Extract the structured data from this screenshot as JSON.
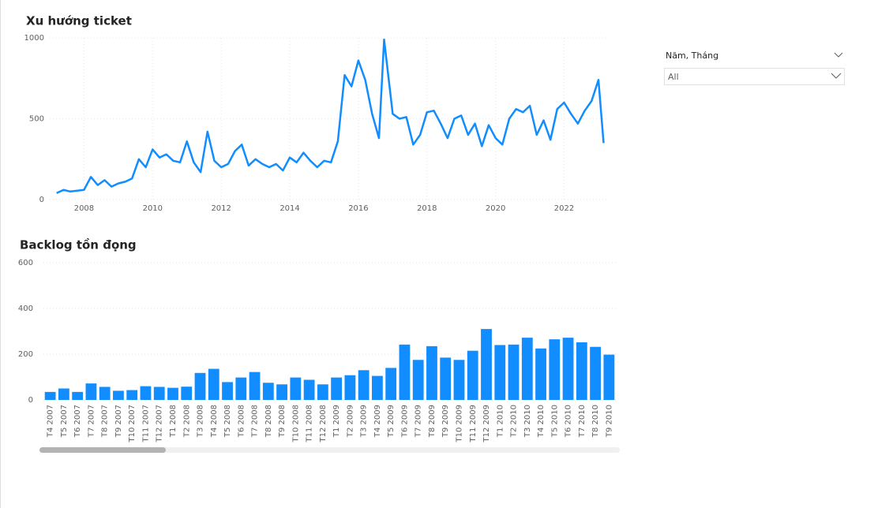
{
  "chart_data": [
    {
      "type": "line",
      "title": "Xu hướng ticket",
      "color": "#118DFF",
      "grid": true,
      "x": [
        2007.2,
        2007.4,
        2007.6,
        2007.8,
        2008.0,
        2008.2,
        2008.4,
        2008.6,
        2008.8,
        2009.0,
        2009.2,
        2009.4,
        2009.6,
        2009.8,
        2010.0,
        2010.2,
        2010.4,
        2010.6,
        2010.8,
        2011.0,
        2011.2,
        2011.4,
        2011.6,
        2011.8,
        2012.0,
        2012.2,
        2012.4,
        2012.6,
        2012.8,
        2013.0,
        2013.2,
        2013.4,
        2013.6,
        2013.8,
        2014.0,
        2014.2,
        2014.4,
        2014.6,
        2014.8,
        2015.0,
        2015.2,
        2015.4,
        2015.6,
        2015.8,
        2016.0,
        2016.2,
        2016.4,
        2016.6,
        2016.75,
        2017.0,
        2017.2,
        2017.4,
        2017.6,
        2017.8,
        2018.0,
        2018.2,
        2018.4,
        2018.6,
        2018.8,
        2019.0,
        2019.2,
        2019.4,
        2019.6,
        2019.8,
        2020.0,
        2020.2,
        2020.4,
        2020.6,
        2020.8,
        2021.0,
        2021.2,
        2021.4,
        2021.6,
        2021.8,
        2022.0,
        2022.2,
        2022.4,
        2022.6,
        2022.8,
        2023.0,
        2023.15
      ],
      "values": [
        40,
        60,
        50,
        55,
        60,
        140,
        90,
        120,
        80,
        100,
        110,
        130,
        250,
        200,
        310,
        260,
        280,
        240,
        230,
        360,
        230,
        170,
        420,
        240,
        200,
        220,
        300,
        340,
        210,
        250,
        220,
        200,
        220,
        180,
        260,
        230,
        290,
        240,
        200,
        240,
        230,
        360,
        770,
        700,
        860,
        740,
        530,
        380,
        990,
        530,
        500,
        510,
        340,
        400,
        540,
        550,
        470,
        380,
        500,
        520,
        400,
        470,
        330,
        460,
        380,
        340,
        500,
        560,
        540,
        580,
        400,
        490,
        370,
        560,
        600,
        530,
        470,
        550,
        610,
        740,
        350
      ],
      "xlim": [
        2007,
        2023.3
      ],
      "xticks": [
        2008,
        2010,
        2012,
        2014,
        2016,
        2018,
        2020,
        2022
      ],
      "ylim": [
        0,
        1000
      ],
      "yticks": [
        0,
        500,
        1000
      ]
    },
    {
      "type": "bar",
      "title": "Backlog tồn đọng",
      "color": "#118DFF",
      "grid": true,
      "categories": [
        "T4 2007",
        "T5 2007",
        "T6 2007",
        "T7 2007",
        "T8 2007",
        "T9 2007",
        "T10 2007",
        "T11 2007",
        "T12 2007",
        "T1 2008",
        "T2 2008",
        "T3 2008",
        "T4 2008",
        "T5 2008",
        "T6 2008",
        "T7 2008",
        "T8 2008",
        "T9 2008",
        "T10 2008",
        "T11 2008",
        "T12 2008",
        "T1 2009",
        "T2 2009",
        "T3 2009",
        "T4 2009",
        "T5 2009",
        "T6 2009",
        "T7 2009",
        "T8 2009",
        "T9 2009",
        "T10 2009",
        "T11 2009",
        "T12 2009",
        "T1 2010",
        "T2 2010",
        "T3 2010",
        "T4 2010",
        "T5 2010",
        "T6 2010",
        "T7 2010",
        "T8 2010",
        "T9 2010"
      ],
      "values": [
        35,
        50,
        35,
        72,
        57,
        40,
        43,
        60,
        57,
        53,
        58,
        118,
        136,
        78,
        98,
        122,
        75,
        68,
        98,
        88,
        68,
        98,
        108,
        130,
        105,
        140,
        242,
        175,
        235,
        185,
        175,
        215,
        310,
        240,
        242,
        272,
        225,
        265,
        272,
        252,
        232,
        198
      ],
      "ylim": [
        0,
        600
      ],
      "yticks": [
        0,
        200,
        400,
        600
      ]
    }
  ],
  "slicer": {
    "label": "Năm, Tháng",
    "value": "All"
  }
}
